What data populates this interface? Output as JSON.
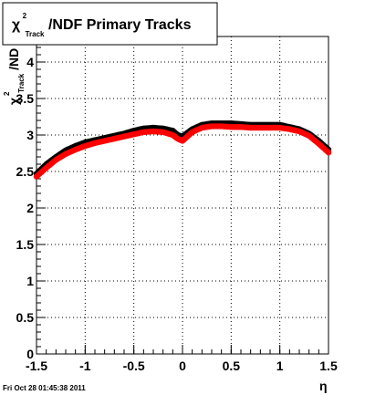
{
  "chart_data": {
    "type": "scatter",
    "title": {
      "chi": "χ",
      "superscript": "2",
      "subscript": "Track",
      "rest": "/NDF  Primary Tracks"
    },
    "ylabel": {
      "chi": "χ",
      "superscript": "2",
      "subscript": "Track",
      "rest": "/ND"
    },
    "xlabel": "η",
    "xlim": [
      -1.5,
      1.5
    ],
    "ylim": [
      0,
      4.35
    ],
    "grid": true,
    "x_ticks": [
      -1.5,
      -1,
      -0.5,
      0,
      0.5,
      1,
      1.5
    ],
    "x_tick_labels": [
      "-1.5",
      "-1",
      "-0.5",
      "0",
      "0.5",
      "1",
      "1.5"
    ],
    "y_ticks": [
      0,
      0.5,
      1,
      1.5,
      2,
      2.5,
      3,
      3.5,
      4
    ],
    "y_tick_labels": [
      "0",
      "0.5",
      "1",
      "1.5",
      "2",
      "2.5",
      "3",
      "3.5",
      "4"
    ],
    "series": [
      {
        "color": "#000000",
        "x": [
          -1.5,
          -1.4,
          -1.3,
          -1.2,
          -1.1,
          -1.0,
          -0.9,
          -0.8,
          -0.7,
          -0.6,
          -0.5,
          -0.4,
          -0.3,
          -0.2,
          -0.1,
          -0.05,
          0.0,
          0.05,
          0.1,
          0.2,
          0.3,
          0.4,
          0.5,
          0.6,
          0.7,
          0.8,
          0.9,
          1.0,
          1.1,
          1.2,
          1.3,
          1.4,
          1.5
        ],
        "y": [
          2.47,
          2.6,
          2.7,
          2.79,
          2.85,
          2.9,
          2.93,
          2.96,
          2.99,
          3.02,
          3.06,
          3.09,
          3.1,
          3.09,
          3.06,
          3.0,
          2.98,
          3.03,
          3.08,
          3.14,
          3.16,
          3.16,
          3.16,
          3.15,
          3.14,
          3.14,
          3.14,
          3.14,
          3.11,
          3.08,
          3.02,
          2.92,
          2.8
        ]
      },
      {
        "color": "#ff0000",
        "x": [
          -1.5,
          -1.4,
          -1.3,
          -1.2,
          -1.1,
          -1.0,
          -0.9,
          -0.8,
          -0.7,
          -0.6,
          -0.5,
          -0.4,
          -0.3,
          -0.2,
          -0.1,
          -0.05,
          0.0,
          0.05,
          0.1,
          0.2,
          0.3,
          0.4,
          0.5,
          0.6,
          0.7,
          0.8,
          0.9,
          1.0,
          1.1,
          1.2,
          1.3,
          1.4,
          1.5
        ],
        "y": [
          2.43,
          2.55,
          2.66,
          2.74,
          2.8,
          2.85,
          2.89,
          2.92,
          2.95,
          2.98,
          3.01,
          3.04,
          3.05,
          3.04,
          3.0,
          2.95,
          2.92,
          2.98,
          3.04,
          3.1,
          3.12,
          3.12,
          3.11,
          3.11,
          3.1,
          3.1,
          3.1,
          3.1,
          3.08,
          3.05,
          2.99,
          2.88,
          2.76
        ]
      }
    ]
  },
  "footer": "Fri Oct 28 01:45:38 2011"
}
